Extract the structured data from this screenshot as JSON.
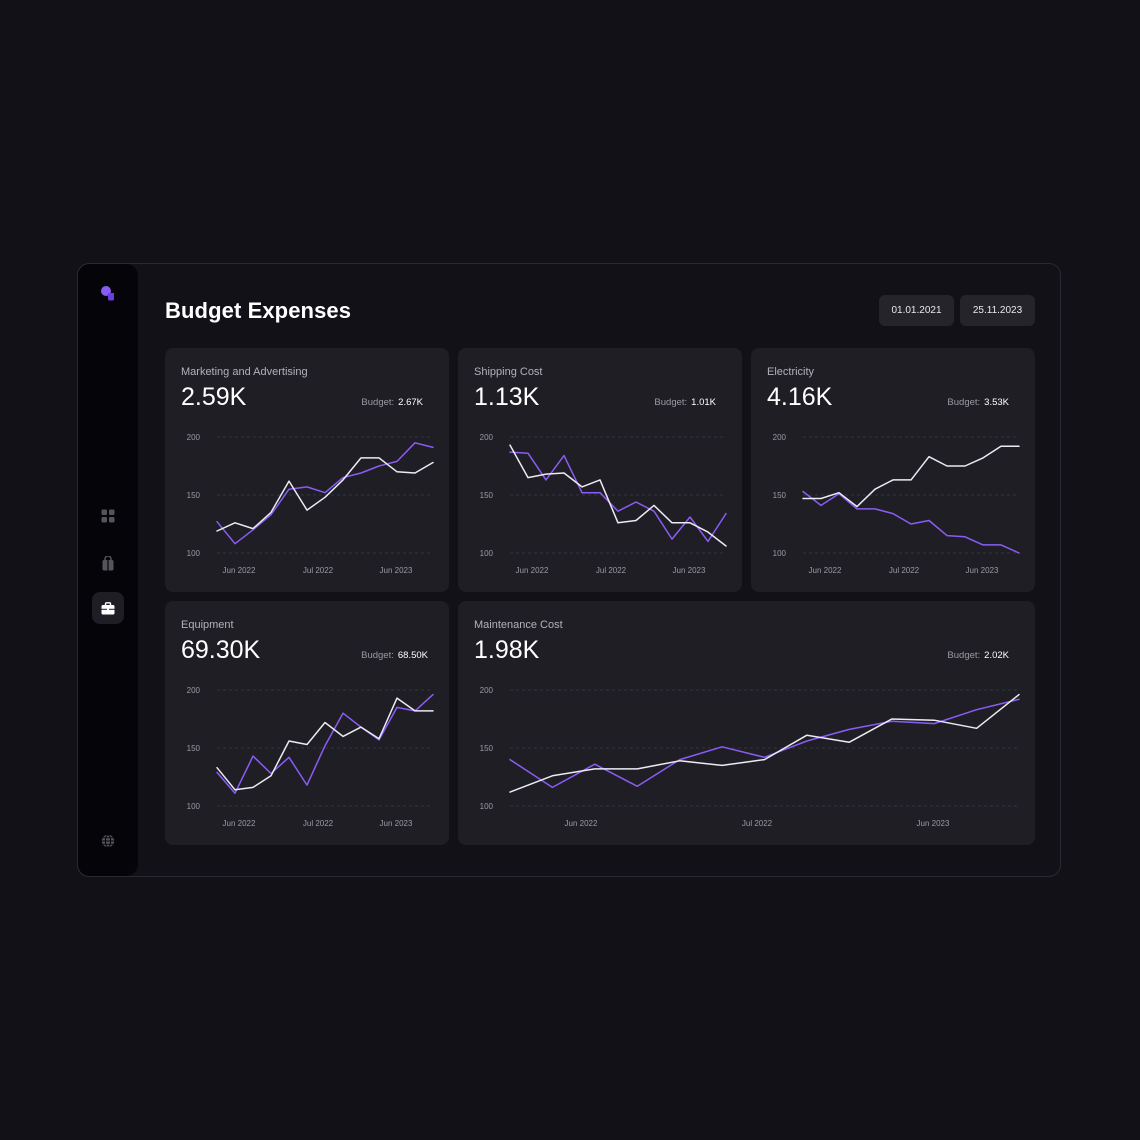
{
  "page_title": "Budget Expenses",
  "date_range": {
    "start": "01.01.2021",
    "end": "25.11.2023"
  },
  "budget_label": "Budget:",
  "colors": {
    "actual": "#8a5cf6",
    "budget": "#eceaf2",
    "accent": "#8a5cf6"
  },
  "sidebar": {
    "logo": "logo-bubbles-icon",
    "items": [
      {
        "icon": "grid-icon",
        "active": false
      },
      {
        "icon": "shopping-bag-icon",
        "active": false
      },
      {
        "icon": "briefcase-icon",
        "active": true
      },
      {
        "icon": "globe-icon",
        "active": false
      }
    ]
  },
  "chart_data": [
    {
      "type": "line",
      "title": "Marketing and Advertising",
      "value": "2.59K",
      "budget": "2.67K",
      "ylim": [
        100,
        200
      ],
      "yticks": [
        100,
        150,
        200
      ],
      "xticks": [
        "Jun 2022",
        "Jul 2022",
        "Jun 2023"
      ],
      "series": [
        {
          "values": [
            127,
            108,
            120,
            133,
            155,
            157,
            152,
            165,
            169,
            175,
            179,
            195,
            191
          ]
        },
        {
          "values": [
            119,
            126,
            121,
            135,
            162,
            137,
            148,
            163,
            182,
            182,
            170,
            169,
            178
          ]
        }
      ]
    },
    {
      "type": "line",
      "title": "Shipping Cost",
      "value": "1.13K",
      "budget": "1.01K",
      "ylim": [
        100,
        200
      ],
      "yticks": [
        100,
        150,
        200
      ],
      "xticks": [
        "Jun 2022",
        "Jul 2022",
        "Jun 2023"
      ],
      "series": [
        {
          "values": [
            187,
            186,
            163,
            184,
            152,
            152,
            136,
            144,
            136,
            112,
            131,
            110,
            134
          ]
        },
        {
          "values": [
            193,
            165,
            168,
            169,
            157,
            163,
            126,
            128,
            141,
            126,
            126,
            118,
            106
          ]
        }
      ]
    },
    {
      "type": "line",
      "title": "Electricity",
      "value": "4.16K",
      "budget": "3.53K",
      "ylim": [
        100,
        200
      ],
      "yticks": [
        100,
        150,
        200
      ],
      "xticks": [
        "Jun 2022",
        "Jul 2022",
        "Jun 2023"
      ],
      "series": [
        {
          "values": [
            153,
            141,
            151,
            138,
            138,
            134,
            125,
            128,
            115,
            114,
            107,
            107,
            100
          ]
        },
        {
          "values": [
            147,
            147,
            152,
            140,
            155,
            163,
            163,
            183,
            175,
            175,
            182,
            192,
            192
          ]
        }
      ]
    },
    {
      "type": "line",
      "title": "Equipment",
      "value": "69.30K",
      "budget": "68.50K",
      "ylim": [
        100,
        200
      ],
      "yticks": [
        100,
        150,
        200
      ],
      "xticks": [
        "Jun 2022",
        "Jul 2022",
        "Jun 2023"
      ],
      "series": [
        {
          "values": [
            129,
            111,
            143,
            128,
            142,
            118,
            152,
            180,
            168,
            157,
            185,
            182,
            196
          ]
        },
        {
          "values": [
            133,
            114,
            116,
            126,
            156,
            153,
            172,
            160,
            168,
            158,
            193,
            182,
            182
          ]
        }
      ]
    },
    {
      "type": "line",
      "title": "Maintenance Cost",
      "value": "1.98K",
      "budget": "2.02K",
      "ylim": [
        100,
        200
      ],
      "yticks": [
        100,
        150,
        200
      ],
      "xticks": [
        "Jun 2022",
        "Jul 2022",
        "Jun 2023"
      ],
      "series": [
        {
          "values": [
            140,
            116,
            136,
            117,
            140,
            151,
            142,
            156,
            166,
            173,
            171,
            183,
            192
          ]
        },
        {
          "values": [
            112,
            126,
            132,
            132,
            139,
            135,
            140,
            161,
            155,
            175,
            174,
            167,
            196
          ]
        }
      ]
    }
  ]
}
